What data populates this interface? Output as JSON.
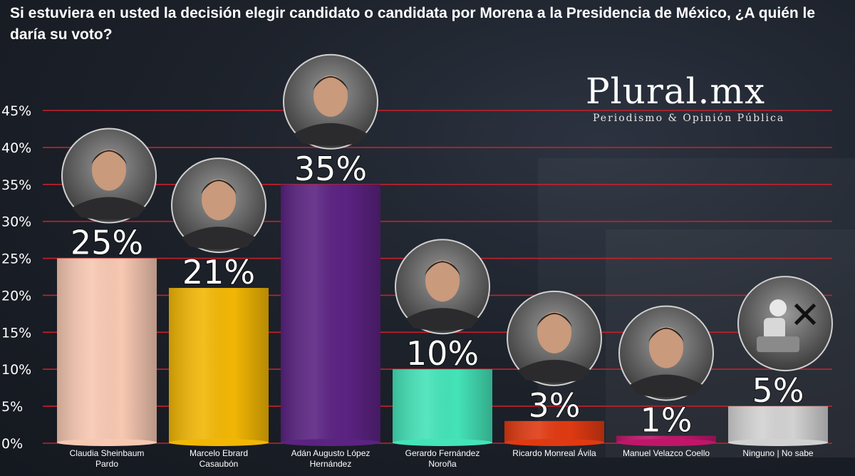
{
  "title": "Si estuviera en usted la decisión elegir candidato o candidata por Morena a la Presidencia de México, ¿A quién le daría su voto?",
  "brand": {
    "name": "Plural.mx",
    "tagline": "Periodismo & Opinión Pública"
  },
  "chart_data": {
    "type": "bar",
    "title": "Si estuviera en usted la decisión elegir candidato o candidata por Morena a la Presidencia de México, ¿A quién le daría su voto?",
    "categories": [
      [
        "Claudia Sheinbaum",
        "Pardo"
      ],
      [
        "Marcelo Ebrard",
        "Casaubón"
      ],
      [
        "Adán Augusto López",
        "Hernández"
      ],
      [
        "Gerardo Fernández",
        "Noroña"
      ],
      [
        "Ricardo Monreal Ávila"
      ],
      [
        "Manuel Velazco Coello"
      ],
      [
        "Ninguno | No sabe"
      ]
    ],
    "values": [
      25,
      21,
      35,
      10,
      3,
      1,
      5
    ],
    "value_labels": [
      "25%",
      "21%",
      "35%",
      "10%",
      "3%",
      "1%",
      "5%"
    ],
    "colors": [
      "#f7c8b2",
      "#f2b705",
      "#5b2382",
      "#44e3b8",
      "#e03a12",
      "#c0166a",
      "#d2d2d2"
    ],
    "photo_icons": [
      "claudia-sheinbaum-photo-icon",
      "marcelo-ebrard-photo-icon",
      "adan-augusto-lopez-photo-icon",
      "gerardo-fernandez-photo-icon",
      "ricardo-monreal-photo-icon",
      "manuel-velazco-photo-icon",
      "ninguno-no-sabe-icon"
    ],
    "ylim": [
      0,
      45
    ],
    "yticks": [
      0,
      5,
      10,
      15,
      20,
      25,
      30,
      35,
      40,
      45
    ],
    "ytick_labels": [
      "0%",
      "5%",
      "10%",
      "15%",
      "20%",
      "25%",
      "30%",
      "35%",
      "40%",
      "45%"
    ],
    "grid": true,
    "grid_color": "#c8202a",
    "xlabel": "",
    "ylabel": ""
  }
}
